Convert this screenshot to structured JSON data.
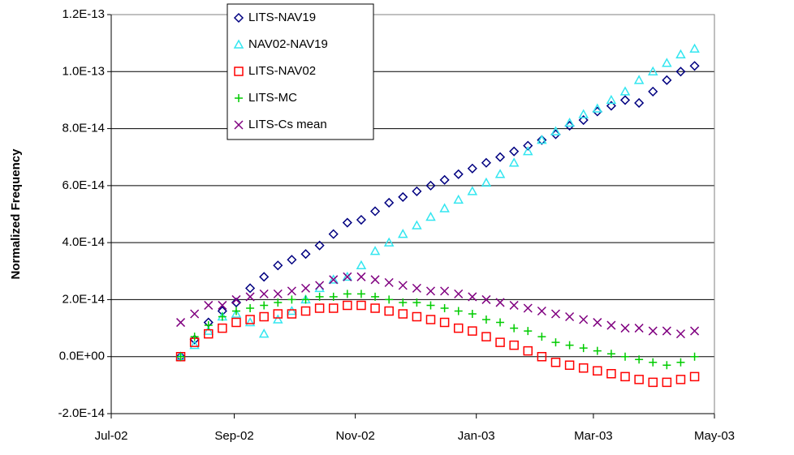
{
  "chart_data": {
    "type": "scatter",
    "y_label": "Normalized Frequency",
    "xlim": [
      "2002-07-01",
      "2003-05-01"
    ],
    "xticks": [
      {
        "value": "2002-07-01",
        "label": "Jul-02"
      },
      {
        "value": "2002-09-01",
        "label": "Sep-02"
      },
      {
        "value": "2002-11-01",
        "label": "Nov-02"
      },
      {
        "value": "2003-01-01",
        "label": "Jan-03"
      },
      {
        "value": "2003-03-01",
        "label": "Mar-03"
      },
      {
        "value": "2003-05-01",
        "label": "May-03"
      }
    ],
    "ylim": [
      -2e-14,
      1.2e-13
    ],
    "yticks": [
      {
        "value": -2e-14,
        "label": "-2.0E-14"
      },
      {
        "value": 0,
        "label": "0.0E+00"
      },
      {
        "value": 2e-14,
        "label": "2.0E-14"
      },
      {
        "value": 4e-14,
        "label": "4.0E-14"
      },
      {
        "value": 6e-14,
        "label": "6.0E-14"
      },
      {
        "value": 8e-14,
        "label": "8.0E-14"
      },
      {
        "value": 1e-13,
        "label": "1.0E-13"
      },
      {
        "value": 1.2e-13,
        "label": "1.2E-13"
      }
    ],
    "grid": true,
    "legend": "top",
    "x": [
      "2002-08-05",
      "2002-08-12",
      "2002-08-19",
      "2002-08-26",
      "2002-09-02",
      "2002-09-09",
      "2002-09-16",
      "2002-09-23",
      "2002-09-30",
      "2002-10-07",
      "2002-10-14",
      "2002-10-21",
      "2002-10-28",
      "2002-11-04",
      "2002-11-11",
      "2002-11-18",
      "2002-11-25",
      "2002-12-02",
      "2002-12-09",
      "2002-12-16",
      "2002-12-23",
      "2002-12-30",
      "2003-01-06",
      "2003-01-13",
      "2003-01-20",
      "2003-01-27",
      "2003-02-03",
      "2003-02-10",
      "2003-02-17",
      "2003-02-24",
      "2003-03-03",
      "2003-03-10",
      "2003-03-17",
      "2003-03-24",
      "2003-03-31",
      "2003-04-07",
      "2003-04-14",
      "2003-04-21"
    ],
    "series": [
      {
        "name": "LITS-NAV19",
        "color": "#000080",
        "marker": "diamond",
        "values": [
          0,
          6e-15,
          1.2e-14,
          1.6e-14,
          1.9e-14,
          2.4e-14,
          2.8e-14,
          3.2e-14,
          3.4e-14,
          3.6e-14,
          3.9e-14,
          4.3e-14,
          4.7e-14,
          4.8e-14,
          5.1e-14,
          5.4e-14,
          5.6e-14,
          5.8e-14,
          6e-14,
          6.2e-14,
          6.4e-14,
          6.6e-14,
          6.8e-14,
          7e-14,
          7.2e-14,
          7.4e-14,
          7.6e-14,
          7.8e-14,
          8.1e-14,
          8.3e-14,
          8.6e-14,
          8.8e-14,
          9e-14,
          8.9e-14,
          9.3e-14,
          9.7e-14,
          1e-13,
          1.02e-13
        ]
      },
      {
        "name": "NAV02-NAV19",
        "color": "#33e6f0",
        "marker": "triangle",
        "values": [
          0,
          4e-15,
          9e-15,
          1.4e-14,
          1.5e-14,
          1.2e-14,
          8e-15,
          1.3e-14,
          1.6e-14,
          2e-14,
          2.4e-14,
          2.7e-14,
          2.8e-14,
          3.2e-14,
          3.7e-14,
          4e-14,
          4.3e-14,
          4.6e-14,
          4.9e-14,
          5.2e-14,
          5.5e-14,
          5.8e-14,
          6.1e-14,
          6.4e-14,
          6.8e-14,
          7.2e-14,
          7.6e-14,
          7.9e-14,
          8.2e-14,
          8.5e-14,
          8.7e-14,
          9e-14,
          9.3e-14,
          9.7e-14,
          1e-13,
          1.03e-13,
          1.06e-13,
          1.08e-13
        ]
      },
      {
        "name": "LITS-NAV02",
        "color": "#ff0000",
        "marker": "square",
        "values": [
          0,
          5e-15,
          8e-15,
          1e-14,
          1.2e-14,
          1.3e-14,
          1.4e-14,
          1.5e-14,
          1.5e-14,
          1.6e-14,
          1.7e-14,
          1.7e-14,
          1.8e-14,
          1.8e-14,
          1.7e-14,
          1.6e-14,
          1.5e-14,
          1.4e-14,
          1.3e-14,
          1.2e-14,
          1e-14,
          9e-15,
          7e-15,
          5e-15,
          4e-15,
          2e-15,
          0,
          -2e-15,
          -3e-15,
          -4e-15,
          -5e-15,
          -6e-15,
          -7e-15,
          -8e-15,
          -9e-15,
          -9e-15,
          -8e-15,
          -7e-15
        ]
      },
      {
        "name": "LITS-MC",
        "color": "#00cc00",
        "marker": "plus",
        "values": [
          0,
          7e-15,
          1.1e-14,
          1.4e-14,
          1.6e-14,
          1.7e-14,
          1.8e-14,
          1.9e-14,
          2e-14,
          2e-14,
          2.1e-14,
          2.1e-14,
          2.2e-14,
          2.2e-14,
          2.1e-14,
          2e-14,
          1.9e-14,
          1.9e-14,
          1.8e-14,
          1.7e-14,
          1.6e-14,
          1.5e-14,
          1.3e-14,
          1.2e-14,
          1e-14,
          9e-15,
          7e-15,
          5e-15,
          4e-15,
          3e-15,
          2e-15,
          1e-15,
          0,
          -1e-15,
          -2e-15,
          -3e-15,
          -2e-15,
          0
        ]
      },
      {
        "name": "LITS-Cs mean",
        "color": "#800080",
        "marker": "x",
        "values": [
          1.2e-14,
          1.5e-14,
          1.8e-14,
          1.8e-14,
          2e-14,
          2.1e-14,
          2.2e-14,
          2.2e-14,
          2.3e-14,
          2.4e-14,
          2.5e-14,
          2.7e-14,
          2.8e-14,
          2.8e-14,
          2.7e-14,
          2.6e-14,
          2.5e-14,
          2.4e-14,
          2.3e-14,
          2.3e-14,
          2.2e-14,
          2.1e-14,
          2e-14,
          1.9e-14,
          1.8e-14,
          1.7e-14,
          1.6e-14,
          1.5e-14,
          1.4e-14,
          1.3e-14,
          1.2e-14,
          1.1e-14,
          1e-14,
          1e-14,
          9e-15,
          9e-15,
          8e-15,
          9e-15
        ]
      }
    ]
  }
}
